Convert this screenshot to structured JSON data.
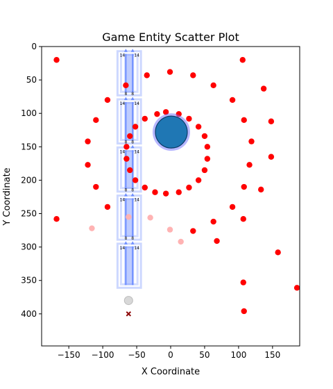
{
  "chart_data": {
    "type": "scatter",
    "title": "Game Entity Scatter Plot",
    "xlabel": "X Coordinate",
    "ylabel": "Y Coordinate",
    "xlim": [
      -190,
      190
    ],
    "ylim": [
      448,
      0
    ],
    "y_inverted": true,
    "grid": false,
    "xticks": [
      -150,
      -100,
      -50,
      0,
      50,
      100,
      150
    ],
    "yticks": [
      0,
      50,
      100,
      150,
      200,
      250,
      300,
      350,
      400
    ],
    "colors": {
      "enemy": "#ff0000",
      "enemy_faded": "#ffb3b3",
      "player": "#1f77b4",
      "player_ring": "#7070ff",
      "structure": "#6f8fff",
      "spawn": "#d8d8d8",
      "marker_x": "#8b0000"
    },
    "series": [
      {
        "kind": "enemies",
        "points": [
          [
            -168,
            20
          ],
          [
            -168,
            258
          ],
          [
            -35,
            43
          ],
          [
            -1,
            38
          ],
          [
            33,
            43
          ],
          [
            63,
            58
          ],
          [
            91,
            80
          ],
          [
            106,
            20
          ],
          [
            137,
            63
          ],
          [
            -93,
            80
          ],
          [
            -110,
            110
          ],
          [
            -122,
            142
          ],
          [
            -122,
            177
          ],
          [
            -110,
            210
          ],
          [
            -93,
            240
          ],
          [
            148,
            112
          ],
          [
            119,
            142
          ],
          [
            116,
            177
          ],
          [
            148,
            165
          ],
          [
            108,
            110
          ],
          [
            108,
            210
          ],
          [
            133,
            214
          ],
          [
            91,
            240
          ],
          [
            107,
            258
          ],
          [
            63,
            262
          ],
          [
            33,
            276
          ],
          [
            68,
            291
          ],
          [
            158,
            308
          ],
          [
            107,
            353
          ],
          [
            108,
            396
          ],
          [
            186,
            361
          ],
          [
            -20,
            101
          ],
          [
            -7,
            98
          ],
          [
            12,
            101
          ],
          [
            27,
            108
          ],
          [
            41,
            120
          ],
          [
            50,
            134
          ],
          [
            54,
            150
          ],
          [
            54,
            168
          ],
          [
            50,
            185
          ],
          [
            41,
            200
          ],
          [
            27,
            211
          ],
          [
            12,
            218
          ],
          [
            -7,
            220
          ],
          [
            -23,
            218
          ],
          [
            -38,
            211
          ],
          [
            -52,
            200
          ],
          [
            -60,
            185
          ],
          [
            -65,
            168
          ],
          [
            -65,
            150
          ],
          [
            -60,
            134
          ],
          [
            -52,
            120
          ],
          [
            -38,
            108
          ],
          [
            -66,
            58
          ]
        ]
      },
      {
        "kind": "enemies_faded",
        "points": [
          [
            -116,
            272
          ],
          [
            -62,
            255
          ],
          [
            -30,
            256
          ],
          [
            -1,
            274
          ],
          [
            15,
            292
          ]
        ]
      },
      {
        "kind": "player",
        "points": [
          [
            1,
            128
          ]
        ]
      },
      {
        "kind": "spawn",
        "points": [
          [
            -62,
            380
          ]
        ]
      },
      {
        "kind": "marker",
        "points": [
          [
            -62,
            400
          ]
        ]
      }
    ],
    "structures": {
      "x_left": -66,
      "x_right": -56,
      "y_centers": [
        40,
        112,
        184,
        256,
        328
      ],
      "top_label": "8",
      "side_label": "14"
    }
  }
}
